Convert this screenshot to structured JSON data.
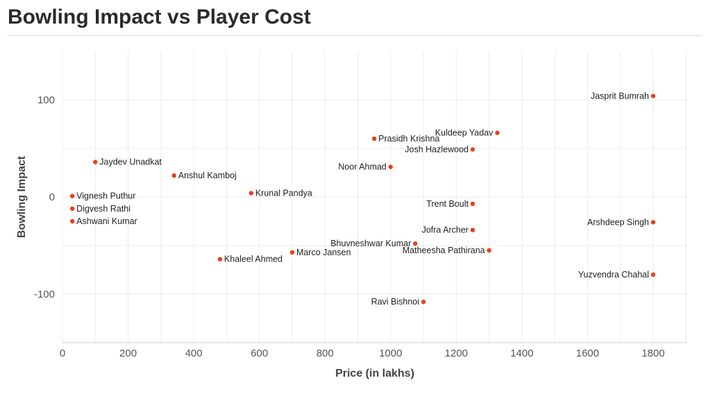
{
  "chart_data": {
    "type": "scatter",
    "title": "Bowling Impact vs Player Cost",
    "xlabel": "Price (in lakhs)",
    "ylabel": "Bowling Impact",
    "xlim": [
      0,
      1900
    ],
    "ylim": [
      -150,
      150
    ],
    "xticks": [
      0,
      200,
      400,
      600,
      800,
      1000,
      1200,
      1400,
      1600,
      1800
    ],
    "yticks": [
      -100,
      0,
      100
    ],
    "grid": true,
    "point_color": "#e8401c",
    "points": [
      {
        "name": "Jasprit Bumrah",
        "x": 1800,
        "y": 104,
        "label_side": "left"
      },
      {
        "name": "Kuldeep Yadav",
        "x": 1325,
        "y": 66,
        "label_side": "left"
      },
      {
        "name": "Prasidh Krishna",
        "x": 950,
        "y": 60,
        "label_side": "right"
      },
      {
        "name": "Josh Hazlewood",
        "x": 1250,
        "y": 49,
        "label_side": "left"
      },
      {
        "name": "Jaydev Unadkat",
        "x": 100,
        "y": 36,
        "label_side": "right"
      },
      {
        "name": "Noor Ahmad",
        "x": 1000,
        "y": 31,
        "label_side": "left"
      },
      {
        "name": "Anshul Kamboj",
        "x": 340,
        "y": 22,
        "label_side": "right"
      },
      {
        "name": "Krunal Pandya",
        "x": 575,
        "y": 4,
        "label_side": "right"
      },
      {
        "name": "Vignesh Puthur",
        "x": 30,
        "y": 1,
        "label_side": "right"
      },
      {
        "name": "Trent Boult",
        "x": 1250,
        "y": -7,
        "label_side": "left"
      },
      {
        "name": "Digvesh Rathi",
        "x": 30,
        "y": -12,
        "label_side": "right"
      },
      {
        "name": "Ashwani Kumar",
        "x": 30,
        "y": -25,
        "label_side": "right"
      },
      {
        "name": "Arshdeep Singh",
        "x": 1800,
        "y": -26,
        "label_side": "left"
      },
      {
        "name": "Jofra Archer",
        "x": 1250,
        "y": -34,
        "label_side": "left"
      },
      {
        "name": "Bhuvneshwar Kumar",
        "x": 1075,
        "y": -48,
        "label_side": "left"
      },
      {
        "name": "Matheesha Pathirana",
        "x": 1300,
        "y": -55,
        "label_side": "left"
      },
      {
        "name": "Marco Jansen",
        "x": 700,
        "y": -57,
        "label_side": "right"
      },
      {
        "name": "Khaleel Ahmed",
        "x": 480,
        "y": -64,
        "label_side": "right"
      },
      {
        "name": "Yuzvendra Chahal",
        "x": 1800,
        "y": -80,
        "label_side": "left"
      },
      {
        "name": "Ravi Bishnoi",
        "x": 1100,
        "y": -108,
        "label_side": "left"
      }
    ]
  }
}
